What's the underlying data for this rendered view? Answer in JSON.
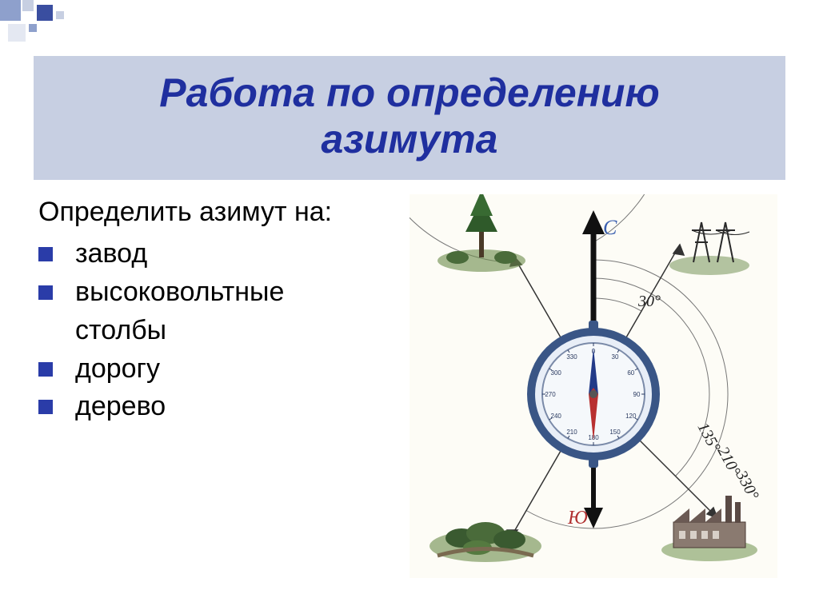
{
  "deco": {
    "colors": [
      "#8ea0cc",
      "#3a4ea0",
      "#c7cfe2",
      "#e4e8f2"
    ]
  },
  "title": {
    "line1": "Работа по определению",
    "line2": "азимута",
    "bg": "#c7cfe2",
    "color": "#1f2f9f"
  },
  "body": {
    "lead": "Определить азимут на:",
    "items": [
      {
        "label": "завод",
        "indent_after": null
      },
      {
        "label": "высоковольтные",
        "indent_after": "столбы"
      },
      {
        "label": "дорогу",
        "indent_after": null
      },
      {
        "label": "дерево",
        "indent_after": null
      }
    ],
    "bullet_color": "#2a3ca8",
    "text_color": "#000000",
    "fontsize": 34
  },
  "diagram": {
    "bg": "#fdfcf6",
    "compass": {
      "ring_outer": "#5f7fae",
      "ring_inner": "#e8eef7",
      "dial_bg": "#f5f8fb",
      "needle_north": "#223a88",
      "needle_south": "#b83030",
      "ticks": [
        "0",
        "30",
        "60",
        "90",
        "120",
        "150",
        "180",
        "210",
        "240",
        "270",
        "300",
        "330"
      ],
      "tick_color": "#2a3a60",
      "center": "#555555"
    },
    "north_label": "С",
    "south_label": "Ю",
    "north_color": "#3a5fb0",
    "south_color": "#b03030",
    "bearings": [
      {
        "deg": 30,
        "label": "30°",
        "target": "pylons"
      },
      {
        "deg": 135,
        "label": "135°",
        "target": "factory"
      },
      {
        "deg": 210,
        "label": "210°",
        "target": "road"
      },
      {
        "deg": 330,
        "label": "330°",
        "target": "tree"
      }
    ],
    "label_font": 18,
    "arc_color": "#555555",
    "ray_color": "#333333",
    "landmark_green": "#4a6b3a",
    "landmark_dark": "#2f3d2a",
    "factory_color": "#6b5a54",
    "pylon_color": "#2a2a2a"
  }
}
